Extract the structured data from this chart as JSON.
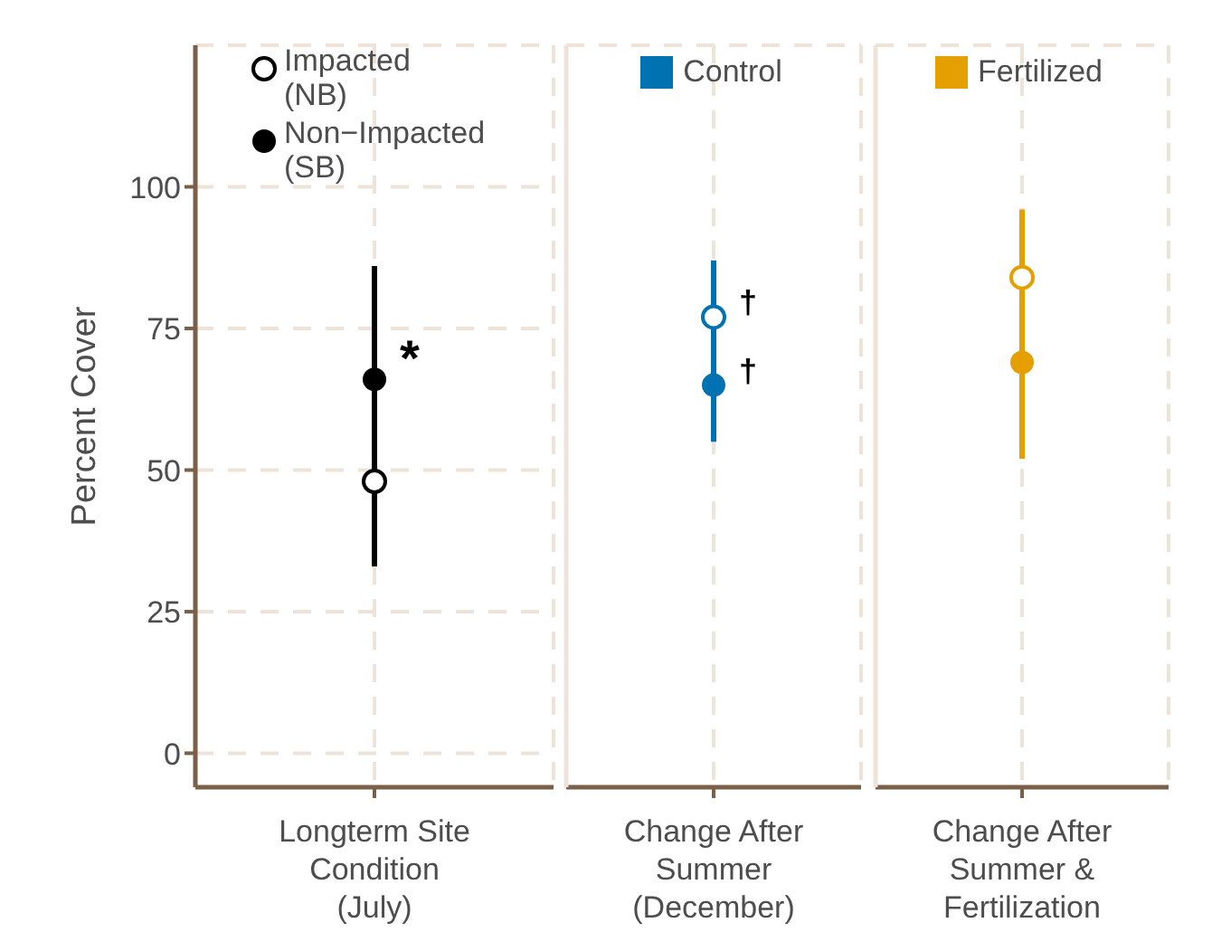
{
  "chart_data": [
    {
      "type": "scatter",
      "ylabel": "Percent Cover",
      "categories": [
        "Longterm Site Condition (July)"
      ],
      "ylim": [
        -6,
        125
      ],
      "yticks": [
        0,
        25,
        50,
        75,
        100
      ],
      "grid": true,
      "legend": "top left",
      "marker": "circle",
      "series": [
        {
          "name": "Impacted (NB)",
          "color": "#000000",
          "values": [
            48
          ],
          "errors": [
            [
              33,
              86
            ]
          ]
        },
        {
          "name": "Non−Impacted (SB)",
          "color": "#000000",
          "values": [
            66
          ]
        }
      ],
      "annotations": [
        {
          "text": "*",
          "x": "Longterm Site Condition (July)",
          "y": 66
        }
      ]
    },
    {
      "type": "scatter",
      "legend_title": "Control",
      "categories": [
        "Change After Summer (December)"
      ],
      "ylim": [
        -6,
        125
      ],
      "yticks": [
        0,
        25,
        50,
        75,
        100
      ],
      "tick_labels": "x",
      "grid": true,
      "marker": "circle",
      "series": [
        {
          "color": "#0072b2",
          "values": [
            77
          ],
          "errors": [
            [
              55,
              87
            ]
          ]
        },
        {
          "color": "#0072b2",
          "values": [
            65
          ]
        }
      ],
      "annotations": [
        {
          "text": "†",
          "x": "Change After Summer (December)",
          "y": 77
        },
        {
          "text": "†",
          "x": "Change After Summer (December)",
          "y": 65
        }
      ]
    },
    {
      "type": "scatter",
      "legend_title": "Fertilized",
      "categories": [
        "Change After Summer & Fertilization"
      ],
      "ylim": [
        -6,
        125
      ],
      "yticks": [
        0,
        25,
        50,
        75,
        100
      ],
      "tick_labels": "x",
      "grid": true,
      "marker": "circle",
      "series": [
        {
          "color": "#e69f00",
          "values": [
            84
          ],
          "errors": [
            [
              52,
              96
            ]
          ]
        },
        {
          "color": "#e69f00",
          "values": [
            69
          ]
        }
      ]
    }
  ]
}
